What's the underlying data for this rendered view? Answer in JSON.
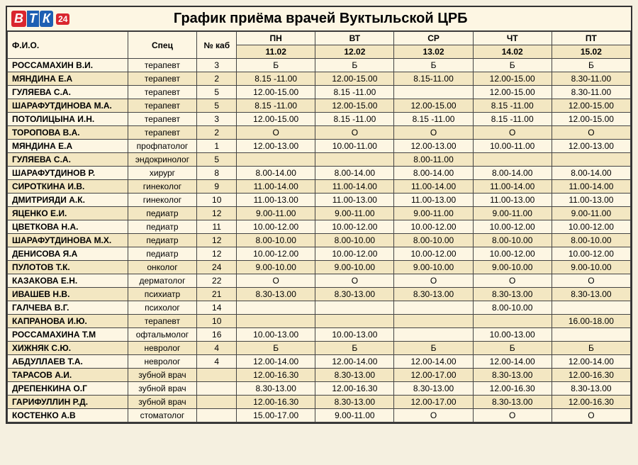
{
  "logo": {
    "b": "В",
    "t": "Т",
    "k": "К",
    "n": "24"
  },
  "title": "График приёма врачей Вуктыльской ЦРБ",
  "headers": {
    "name": "Ф.И.О.",
    "spec": "Спец",
    "kab": "№ каб",
    "days": [
      "ПН",
      "ВТ",
      "СР",
      "ЧТ",
      "ПТ"
    ],
    "dates": [
      "11.02",
      "12.02",
      "13.02",
      "14.02",
      "15.02"
    ]
  },
  "rows": [
    {
      "alt": false,
      "name": "РОССАМАХИН В.И.",
      "spec": "терапевт",
      "kab": "3",
      "d": [
        "Б",
        "Б",
        "Б",
        "Б",
        "Б"
      ]
    },
    {
      "alt": true,
      "name": "МЯНДИНА Е.А",
      "spec": "терапевт",
      "kab": "2",
      "d": [
        "8.15 -11.00",
        "12.00-15.00",
        "8.15-11.00",
        "12.00-15.00",
        "8.30-11.00"
      ]
    },
    {
      "alt": false,
      "name": "ГУЛЯЕВА С.А.",
      "spec": "терапевт",
      "kab": "5",
      "d": [
        "12.00-15.00",
        "8.15 -11.00",
        "",
        "12.00-15.00",
        "8.30-11.00"
      ]
    },
    {
      "alt": true,
      "name": "ШАРАФУТДИНОВА М.А.",
      "spec": "терапевт",
      "kab": "5",
      "d": [
        "8.15 -11.00",
        "12.00-15.00",
        "12.00-15.00",
        "8.15 -11.00",
        "12.00-15.00"
      ]
    },
    {
      "alt": false,
      "name": "ПОТОЛИЦЫНА И.Н.",
      "spec": "терапевт",
      "kab": "3",
      "d": [
        "12.00-15.00",
        "8.15 -11.00",
        "8.15 -11.00",
        "8.15 -11.00",
        "12.00-15.00"
      ]
    },
    {
      "alt": true,
      "name": "ТОРОПОВА В.А.",
      "spec": "терапевт",
      "kab": "2",
      "d": [
        "О",
        "О",
        "О",
        "О",
        "О"
      ]
    },
    {
      "alt": false,
      "name": "МЯНДИНА Е.А",
      "spec": "профпатолог",
      "kab": "1",
      "d": [
        "12.00-13.00",
        "10.00-11.00",
        "12.00-13.00",
        "10.00-11.00",
        "12.00-13.00"
      ]
    },
    {
      "alt": true,
      "name": "ГУЛЯЕВА С.А.",
      "spec": "эндокринолог",
      "kab": "5",
      "d": [
        "",
        "",
        "8.00-11.00",
        "",
        ""
      ]
    },
    {
      "alt": false,
      "name": "ШАРАФУТДИНОВ Р.",
      "spec": "хирург",
      "kab": "8",
      "d": [
        "8.00-14.00",
        "8.00-14.00",
        "8.00-14.00",
        "8.00-14.00",
        "8.00-14.00"
      ]
    },
    {
      "alt": true,
      "name": "СИРОТКИНА И.В.",
      "spec": "гинеколог",
      "kab": "9",
      "d": [
        "11.00-14.00",
        "11.00-14.00",
        "11.00-14.00",
        "11.00-14.00",
        "11.00-14.00"
      ]
    },
    {
      "alt": false,
      "name": "ДМИТРИЯДИ А.К.",
      "spec": "гинеколог",
      "kab": "10",
      "d": [
        "11.00-13.00",
        "11.00-13.00",
        "11.00-13.00",
        "11.00-13.00",
        "11.00-13.00"
      ]
    },
    {
      "alt": true,
      "name": "ЯЦЕНКО Е.И.",
      "spec": "педиатр",
      "kab": "12",
      "d": [
        "9.00-11.00",
        "9.00-11.00",
        "9.00-11.00",
        "9.00-11.00",
        "9.00-11.00"
      ]
    },
    {
      "alt": false,
      "name": "ЦВЕТКОВА Н.А.",
      "spec": "педиатр",
      "kab": "11",
      "d": [
        "10.00-12.00",
        "10.00-12.00",
        "10.00-12.00",
        "10.00-12.00",
        "10.00-12.00"
      ]
    },
    {
      "alt": true,
      "name": "ШАРАФУТДИНОВА М.Х.",
      "spec": "педиатр",
      "kab": "12",
      "d": [
        "8.00-10.00",
        "8.00-10.00",
        "8.00-10.00",
        "8.00-10.00",
        "8.00-10.00"
      ]
    },
    {
      "alt": false,
      "name": "ДЕНИСОВА Я.А",
      "spec": "педиатр",
      "kab": "12",
      "d": [
        "10.00-12.00",
        "10.00-12.00",
        "10.00-12.00",
        "10.00-12.00",
        "10.00-12.00"
      ]
    },
    {
      "alt": true,
      "name": "ПУЛОТОВ Т.К.",
      "spec": "онколог",
      "kab": "24",
      "d": [
        "9.00-10.00",
        "9.00-10.00",
        "9.00-10.00",
        "9.00-10.00",
        "9.00-10.00"
      ]
    },
    {
      "alt": false,
      "name": "КАЗАКОВА Е.Н.",
      "spec": "дерматолог",
      "kab": "22",
      "d": [
        "О",
        "О",
        "О",
        "О",
        "О"
      ]
    },
    {
      "alt": true,
      "name": "ИВАШЕВ Н.В.",
      "spec": "психиатр",
      "kab": "21",
      "d": [
        "8.30-13.00",
        "8.30-13.00",
        "8.30-13.00",
        "8.30-13.00",
        "8.30-13.00"
      ]
    },
    {
      "alt": false,
      "name": "ГАЛЧЕВА В.Г.",
      "spec": "психолог",
      "kab": "14",
      "d": [
        "",
        "",
        "",
        "8.00-10.00",
        ""
      ]
    },
    {
      "alt": true,
      "name": "КАПРАНОВА И.Ю.",
      "spec": "терапевт",
      "kab": "10",
      "d": [
        "",
        "",
        "",
        "",
        "16.00-18.00"
      ]
    },
    {
      "alt": false,
      "name": "РОССАМАХИНА Т.М",
      "spec": "офтальмолог",
      "kab": "16",
      "d": [
        "10.00-13.00",
        "10.00-13.00",
        "",
        "10.00-13.00",
        ""
      ]
    },
    {
      "alt": true,
      "name": "ХИЖНЯК С.Ю.",
      "spec": "невролог",
      "kab": "4",
      "d": [
        "Б",
        "Б",
        "Б",
        "Б",
        "Б"
      ]
    },
    {
      "alt": false,
      "name": "АБДУЛЛАЕВ Т.А.",
      "spec": "невролог",
      "kab": "4",
      "d": [
        "12.00-14.00",
        "12.00-14.00",
        "12.00-14.00",
        "12.00-14.00",
        "12.00-14.00"
      ]
    },
    {
      "alt": true,
      "name": "ТАРАСОВ А.И.",
      "spec": "зубной врач",
      "kab": "",
      "d": [
        "12.00-16.30",
        "8.30-13.00",
        "12.00-17.00",
        "8.30-13.00",
        "12.00-16.30"
      ]
    },
    {
      "alt": false,
      "name": "ДРЕПЕНКИНА О.Г",
      "spec": "зубной врач",
      "kab": "",
      "d": [
        "8.30-13.00",
        "12.00-16.30",
        "8.30-13.00",
        "12.00-16.30",
        "8.30-13.00"
      ]
    },
    {
      "alt": true,
      "name": "ГАРИФУЛЛИН Р.Д.",
      "spec": "зубной врач",
      "kab": "",
      "d": [
        "12.00-16.30",
        "8.30-13.00",
        "12.00-17.00",
        "8.30-13.00",
        "12.00-16.30"
      ]
    },
    {
      "alt": false,
      "name": "КОСТЕНКО А.В",
      "spec": "стоматолог",
      "kab": "",
      "d": [
        "15.00-17.00",
        "9.00-11.00",
        "О",
        "О",
        "О"
      ]
    }
  ]
}
